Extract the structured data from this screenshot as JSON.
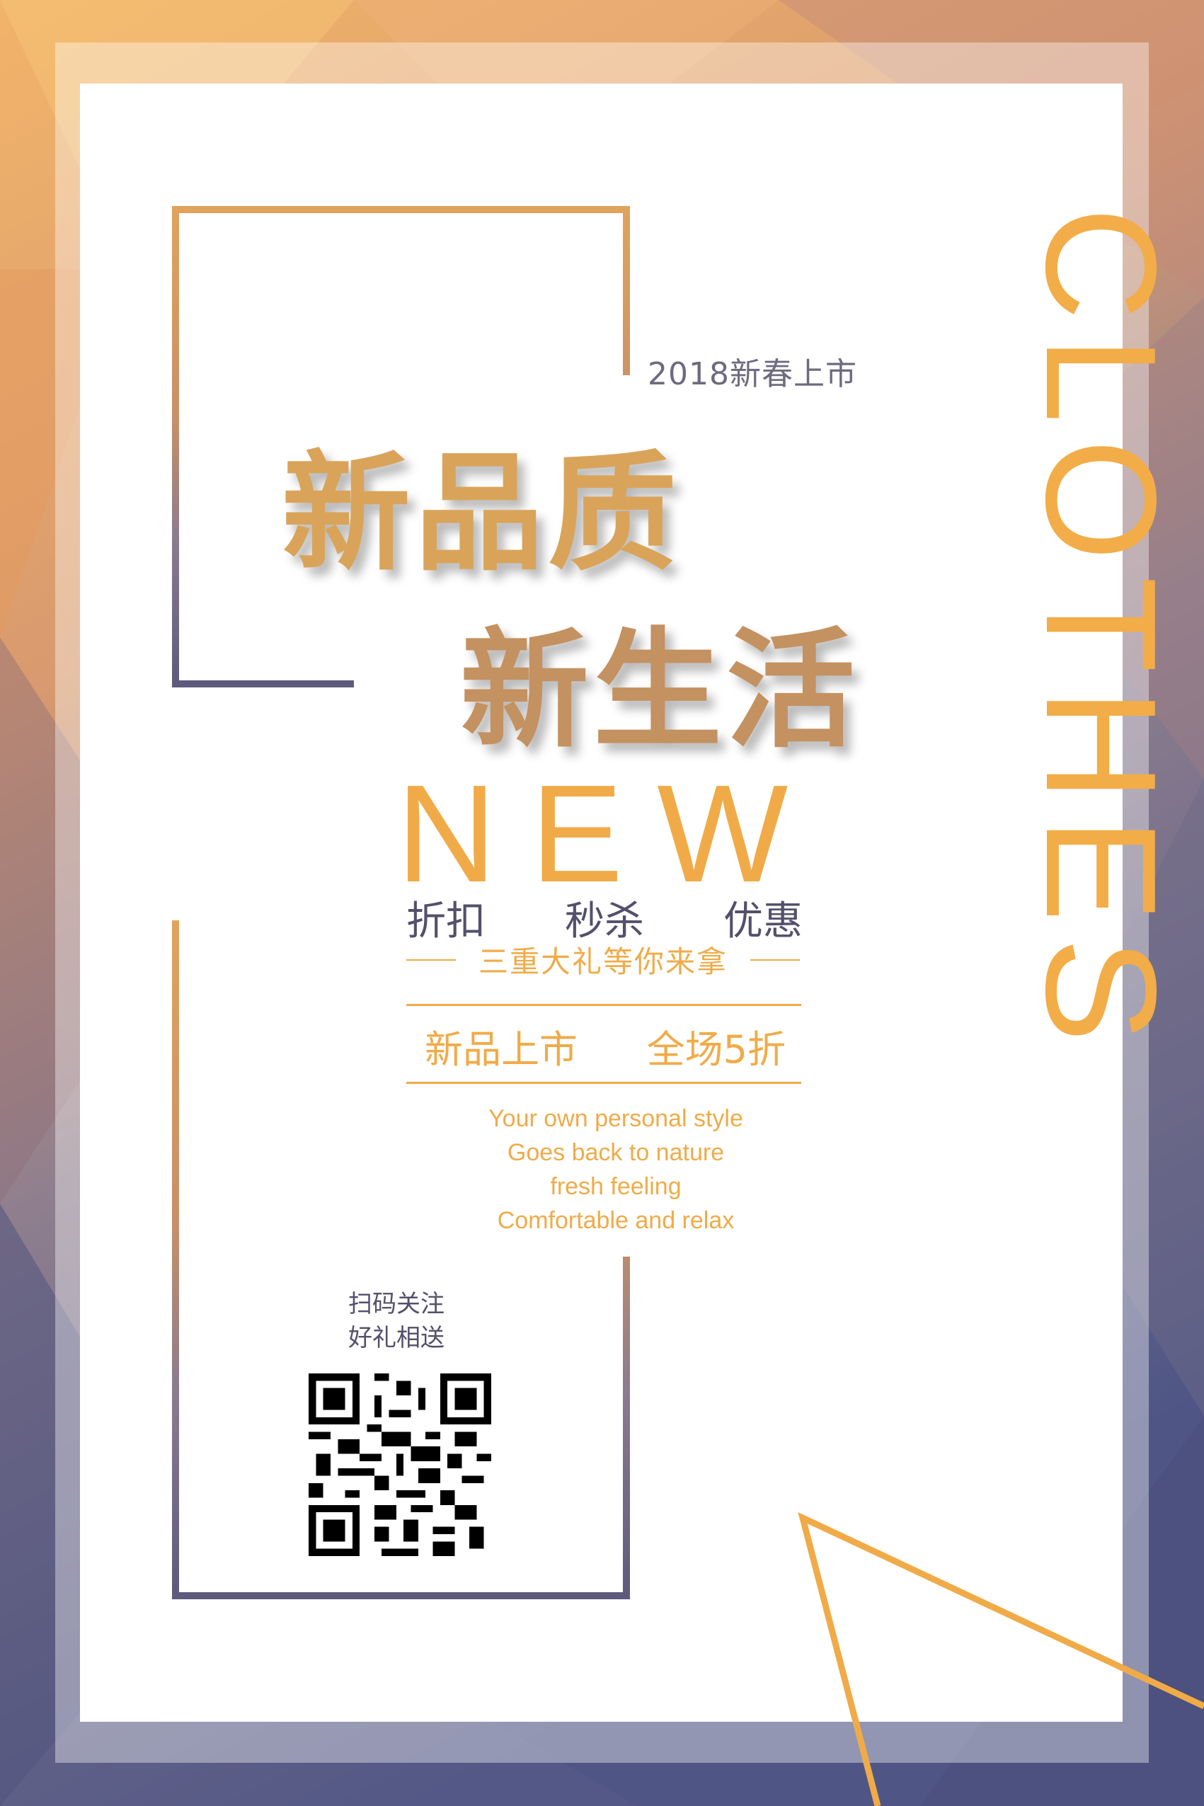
{
  "poster": {
    "year_tag": "2018新春上市",
    "headline_line1": "新品质",
    "headline_line2": "新生活",
    "new_word": "NEW",
    "vertical_word": "CLOTHES",
    "offers": [
      "折扣",
      "秒杀",
      "优惠"
    ],
    "gift_text": "三重大礼等你来拿",
    "promo_left": "新品上市",
    "promo_right": "全场5折",
    "slogans": [
      "Your own personal style",
      "Goes back to nature",
      "fresh feeling",
      "Comfortable and relax"
    ],
    "scan_line1": "扫码关注",
    "scan_line2": "好礼相送",
    "qr_icon": "qr-code-icon"
  },
  "colors": {
    "accent_orange": "#f0ab48",
    "text_dark": "#53506b",
    "bg_top": "#f2b46a",
    "bg_bottom": "#5a5b82"
  }
}
